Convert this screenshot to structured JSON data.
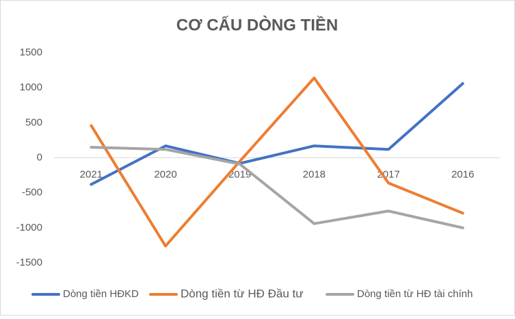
{
  "chart_data": {
    "type": "line",
    "title": "CƠ CẤU DÒNG TIỀN",
    "categories": [
      "2021",
      "2020",
      "2019",
      "2018",
      "2017",
      "2016"
    ],
    "series": [
      {
        "name": "Dòng tiền HĐKD",
        "color": "#4472c4",
        "values": [
          -380,
          170,
          -80,
          170,
          120,
          1060
        ]
      },
      {
        "name": "Dòng tiền từ HĐ Đầu tư",
        "color": "#ed7d31",
        "values": [
          460,
          -1260,
          -50,
          1140,
          -360,
          -790
        ]
      },
      {
        "name": "Dòng tiền từ HĐ tài chính",
        "color": "#a5a5a5",
        "values": [
          150,
          120,
          -90,
          -940,
          -760,
          -1000
        ]
      }
    ],
    "ylim": [
      -1500,
      1500
    ],
    "yticks": [
      -1500,
      -1000,
      -500,
      0,
      500,
      1000,
      1500
    ],
    "legend": "bottom"
  }
}
